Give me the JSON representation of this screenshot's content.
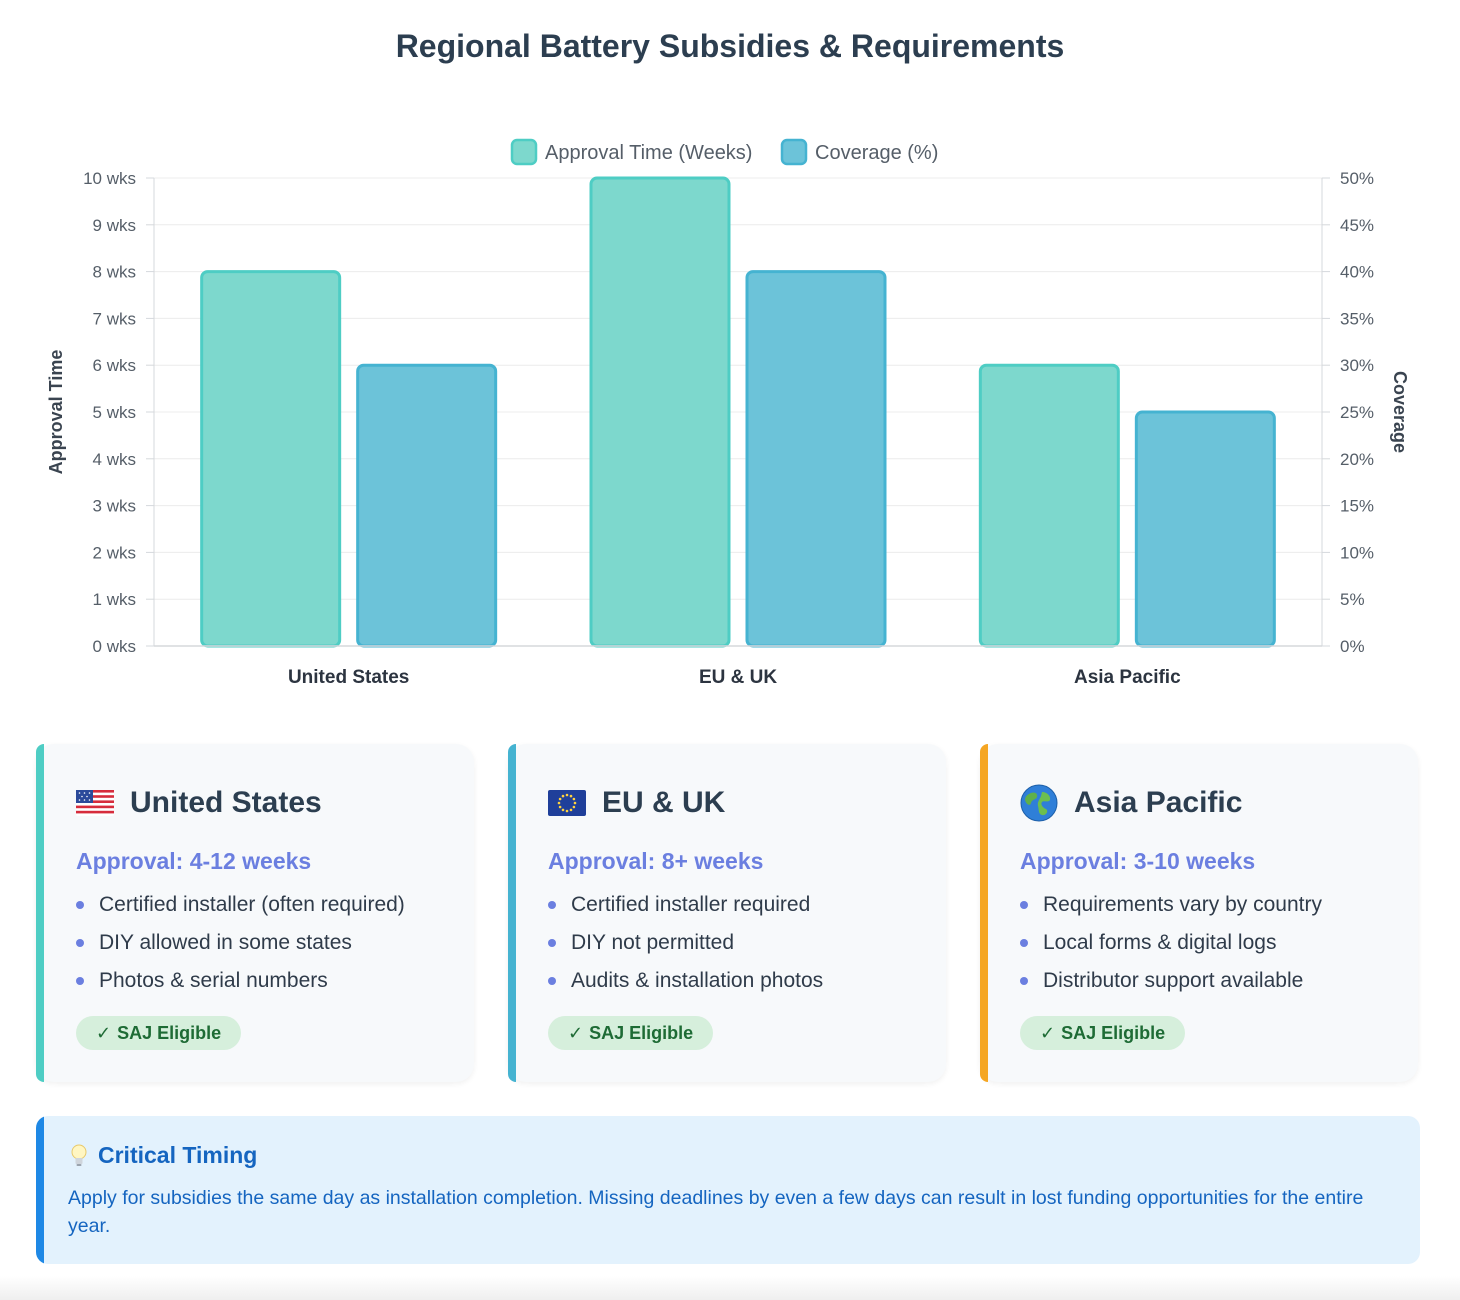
{
  "page": {
    "title": "Regional Battery Subsidies & Requirements"
  },
  "colors": {
    "approval_fill": "#7dd8cd",
    "approval_stroke": "#4ecdc4",
    "coverage_fill": "#6cc3d9",
    "coverage_stroke": "#45b3d1",
    "us_accent": "#4ecdc4",
    "eu_accent": "#45b3d1",
    "apac_accent": "#f5a623",
    "approval_text": "#6b7fe0",
    "callout_accent": "#1e88e5"
  },
  "chart_data": {
    "type": "bar",
    "categories": [
      "United States",
      "EU & UK",
      "Asia Pacific"
    ],
    "series": [
      {
        "name": "Approval Time (Weeks)",
        "axis": "left",
        "values": [
          8,
          10,
          6
        ]
      },
      {
        "name": "Coverage (%)",
        "axis": "right",
        "values": [
          30,
          40,
          25
        ]
      }
    ],
    "ylabel": "Approval Time",
    "y2label": "Coverage",
    "ylim": [
      0,
      10
    ],
    "y2lim": [
      0,
      50
    ],
    "yticks": [
      "0 wks",
      "1 wks",
      "2 wks",
      "3 wks",
      "4 wks",
      "5 wks",
      "6 wks",
      "7 wks",
      "8 wks",
      "9 wks",
      "10 wks"
    ],
    "y2ticks": [
      "0%",
      "5%",
      "10%",
      "15%",
      "20%",
      "25%",
      "30%",
      "35%",
      "40%",
      "45%",
      "50%"
    ],
    "legend_position": "top-center",
    "grid": true
  },
  "cards": [
    {
      "title": "United States",
      "approval": "Approval: 4-12 weeks",
      "items": [
        "Certified installer (often required)",
        "DIY allowed in some states",
        "Photos & serial numbers"
      ],
      "badge": "SAJ Eligible",
      "icon": "us-flag-icon"
    },
    {
      "title": "EU & UK",
      "approval": "Approval: 8+ weeks",
      "items": [
        "Certified installer required",
        "DIY not permitted",
        "Audits & installation photos"
      ],
      "badge": "SAJ Eligible",
      "icon": "eu-flag-icon"
    },
    {
      "title": "Asia Pacific",
      "approval": "Approval: 3-10 weeks",
      "items": [
        "Requirements vary by country",
        "Local forms & digital logs",
        "Distributor support available"
      ],
      "badge": "SAJ Eligible",
      "icon": "globe-icon"
    }
  ],
  "callout": {
    "title": "Critical Timing",
    "text": "Apply for subsidies the same day as installation completion. Missing deadlines by even a few days can result in lost funding opportunities for the entire year.",
    "icon": "lightbulb-icon"
  }
}
